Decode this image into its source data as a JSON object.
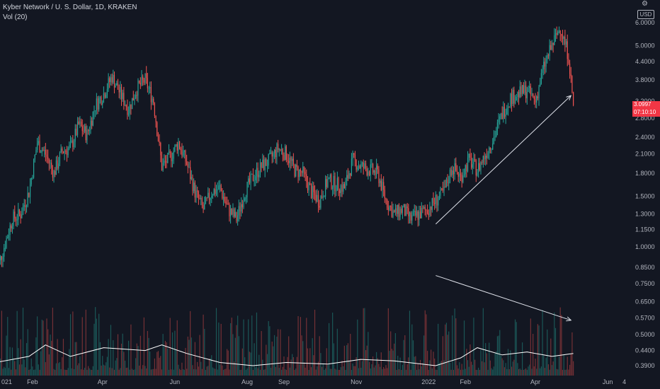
{
  "legend": {
    "title": "Kyber Network / U. S. Dollar, 1D, KRAKEN",
    "vol": "Vol (20)"
  },
  "currency_button": "USD",
  "last_price": {
    "value": "3.0997",
    "countdown": "07:10:10"
  },
  "colors": {
    "background": "#131722",
    "up": "#26a69a",
    "down": "#ef5350",
    "line": "#ffffff",
    "price_tag": "#f23645"
  },
  "icons": {
    "settings": "gear-icon"
  },
  "chart_data": {
    "type": "candlestick",
    "scale": "log",
    "y_ticks": [
      "6.0000",
      "5.0000",
      "4.4000",
      "3.8000",
      "3.2000",
      "2.8000",
      "2.4000",
      "2.1000",
      "1.8000",
      "1.5000",
      "1.3000",
      "1.1500",
      "1.0000",
      "0.8500",
      "0.7500",
      "0.6500",
      "0.5700",
      "0.5000",
      "0.4400",
      "0.3900"
    ],
    "x_ticks": [
      "2021",
      "Feb",
      "Apr",
      "Jun",
      "Aug",
      "Sep",
      "Nov",
      "2022",
      "Feb",
      "Apr",
      "Jun",
      "4"
    ],
    "x_first_tick_partial": "021",
    "price_path": [
      [
        "2021-01-01",
        0.8
      ],
      [
        "2021-01-08",
        1.0
      ],
      [
        "2021-01-15",
        1.25
      ],
      [
        "2021-01-22",
        1.3
      ],
      [
        "2021-01-29",
        1.55
      ],
      [
        "2021-02-05",
        2.3
      ],
      [
        "2021-02-12",
        2.1
      ],
      [
        "2021-02-19",
        1.8
      ],
      [
        "2021-02-26",
        2.15
      ],
      [
        "2021-03-05",
        2.2
      ],
      [
        "2021-03-12",
        2.65
      ],
      [
        "2021-03-19",
        2.45
      ],
      [
        "2021-03-26",
        3.1
      ],
      [
        "2021-04-02",
        3.4
      ],
      [
        "2021-04-09",
        3.9
      ],
      [
        "2021-04-16",
        3.4
      ],
      [
        "2021-04-23",
        3.0
      ],
      [
        "2021-04-30",
        3.55
      ],
      [
        "2021-05-07",
        3.8
      ],
      [
        "2021-05-14",
        3.2
      ],
      [
        "2021-05-21",
        1.9
      ],
      [
        "2021-05-28",
        2.05
      ],
      [
        "2021-06-04",
        2.3
      ],
      [
        "2021-06-11",
        1.95
      ],
      [
        "2021-06-18",
        1.55
      ],
      [
        "2021-06-25",
        1.35
      ],
      [
        "2021-07-02",
        1.55
      ],
      [
        "2021-07-09",
        1.6
      ],
      [
        "2021-07-16",
        1.35
      ],
      [
        "2021-07-23",
        1.25
      ],
      [
        "2021-07-30",
        1.55
      ],
      [
        "2021-08-06",
        1.75
      ],
      [
        "2021-08-13",
        1.9
      ],
      [
        "2021-08-20",
        2.0
      ],
      [
        "2021-08-27",
        2.2
      ],
      [
        "2021-09-03",
        2.1
      ],
      [
        "2021-09-10",
        1.85
      ],
      [
        "2021-09-17",
        1.8
      ],
      [
        "2021-09-24",
        1.55
      ],
      [
        "2021-10-01",
        1.45
      ],
      [
        "2021-10-08",
        1.7
      ],
      [
        "2021-10-15",
        1.65
      ],
      [
        "2021-10-22",
        1.6
      ],
      [
        "2021-10-29",
        2.0
      ],
      [
        "2021-11-05",
        1.9
      ],
      [
        "2021-11-12",
        1.85
      ],
      [
        "2021-11-19",
        1.8
      ],
      [
        "2021-11-26",
        1.45
      ],
      [
        "2021-12-03",
        1.3
      ],
      [
        "2021-12-10",
        1.35
      ],
      [
        "2021-12-17",
        1.25
      ],
      [
        "2021-12-24",
        1.3
      ],
      [
        "2021-12-31",
        1.35
      ],
      [
        "2022-01-07",
        1.45
      ],
      [
        "2022-01-14",
        1.55
      ],
      [
        "2022-01-21",
        1.9
      ],
      [
        "2022-01-28",
        1.75
      ],
      [
        "2022-02-04",
        2.0
      ],
      [
        "2022-02-11",
        1.85
      ],
      [
        "2022-02-18",
        2.1
      ],
      [
        "2022-02-25",
        2.4
      ],
      [
        "2022-03-04",
        2.9
      ],
      [
        "2022-03-11",
        3.3
      ],
      [
        "2022-03-18",
        3.4
      ],
      [
        "2022-03-25",
        3.5
      ],
      [
        "2022-04-01",
        3.2
      ],
      [
        "2022-04-08",
        4.2
      ],
      [
        "2022-04-15",
        5.0
      ],
      [
        "2022-04-22",
        5.8
      ],
      [
        "2022-04-29",
        4.6
      ],
      [
        "2022-05-03",
        3.1
      ]
    ],
    "volume_ma_path": [
      [
        "2021-01-01",
        0.4
      ],
      [
        "2021-01-29",
        0.42
      ],
      [
        "2021-02-12",
        0.46
      ],
      [
        "2021-03-05",
        0.42
      ],
      [
        "2021-04-02",
        0.45
      ],
      [
        "2021-05-07",
        0.44
      ],
      [
        "2021-05-21",
        0.46
      ],
      [
        "2021-06-11",
        0.43
      ],
      [
        "2021-07-09",
        0.4
      ],
      [
        "2021-08-06",
        0.39
      ],
      [
        "2021-09-03",
        0.4
      ],
      [
        "2021-10-08",
        0.395
      ],
      [
        "2021-11-05",
        0.41
      ],
      [
        "2021-12-03",
        0.405
      ],
      [
        "2022-01-07",
        0.39
      ],
      [
        "2022-01-28",
        0.415
      ],
      [
        "2022-02-11",
        0.45
      ],
      [
        "2022-03-04",
        0.425
      ],
      [
        "2022-03-25",
        0.435
      ],
      [
        "2022-04-15",
        0.42
      ],
      [
        "2022-05-03",
        0.43
      ]
    ],
    "trendlines": [
      {
        "from": [
          "2022-01-07",
          1.2
        ],
        "to": [
          "2022-05-01",
          3.35
        ]
      },
      {
        "from": [
          "2022-01-07",
          0.8
        ],
        "to": [
          "2022-05-01",
          0.56
        ]
      }
    ]
  }
}
